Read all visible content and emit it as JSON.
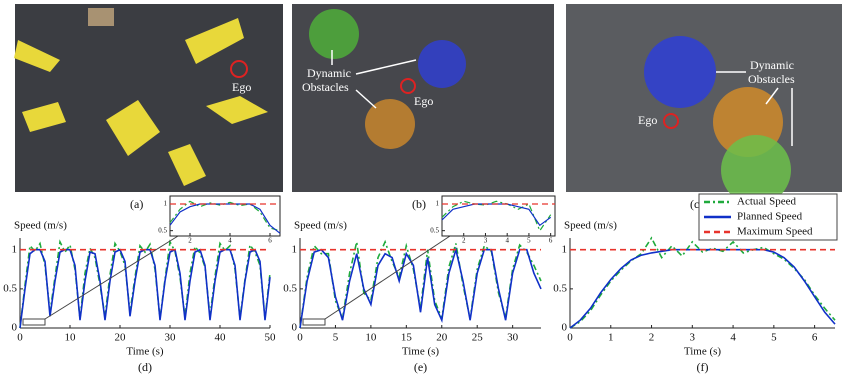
{
  "photos": [
    {
      "caption": "(a)",
      "labels": [
        "Ego"
      ]
    },
    {
      "caption": "(b)",
      "labels": [
        "Dynamic",
        "Obstacles",
        "Ego"
      ]
    },
    {
      "caption": "(c)",
      "labels": [
        "Dynamic",
        "Obstacles",
        "Ego"
      ]
    }
  ],
  "chart_data": [
    {
      "type": "line",
      "caption": "(d)",
      "ylabel": "Speed (m/s)",
      "xlabel": "Time (s)",
      "xlim": [
        0,
        50
      ],
      "xticks": [
        0,
        10,
        20,
        30,
        40,
        50
      ],
      "ylim": [
        0,
        1.15
      ],
      "yticks": [
        0,
        0.5,
        1
      ],
      "x": [
        0,
        1,
        2,
        3,
        4,
        5,
        6,
        7,
        8,
        9,
        10,
        11,
        12,
        13,
        14,
        15,
        16,
        17,
        18,
        19,
        20,
        21,
        22,
        23,
        24,
        25,
        26,
        27,
        28,
        29,
        30,
        31,
        32,
        33,
        34,
        35,
        36,
        37,
        38,
        39,
        40,
        41,
        42,
        43,
        44,
        45,
        46,
        47,
        48,
        49,
        50
      ],
      "series": [
        {
          "color": "#1faa3c",
          "style": "dashdot",
          "values": [
            0,
            0.55,
            1.05,
            0.98,
            1.08,
            0.8,
            0.2,
            0.65,
            1.1,
            0.97,
            1.06,
            0.75,
            0.12,
            0.7,
            1.02,
            0.9,
            0.55,
            0.15,
            0.68,
            1.08,
            0.98,
            0.8,
            0.2,
            0.65,
            1.05,
            0.97,
            1.07,
            0.75,
            0.12,
            0.62,
            1.1,
            0.98,
            0.65,
            0.14,
            0.7,
            1.04,
            0.96,
            0.78,
            0.15,
            0.66,
            1.08,
            0.99,
            1.05,
            0.75,
            0.13,
            0.62,
            1.06,
            0.97,
            0.8,
            0.12,
            0.7
          ]
        },
        {
          "color": "#1030c8",
          "style": "solid",
          "values": [
            0,
            0.5,
            0.95,
            1,
            1,
            0.85,
            0.15,
            0.6,
            0.97,
            1,
            1,
            0.8,
            0.1,
            0.6,
            0.97,
            0.95,
            0.6,
            0.1,
            0.6,
            0.97,
            1,
            0.85,
            0.15,
            0.6,
            0.97,
            1,
            1,
            0.8,
            0.1,
            0.6,
            0.97,
            1,
            0.7,
            0.1,
            0.6,
            0.97,
            1,
            0.8,
            0.1,
            0.6,
            0.97,
            1,
            1,
            0.8,
            0.1,
            0.6,
            0.97,
            1,
            0.85,
            0.1,
            0.65
          ]
        },
        {
          "color": "#e8342c",
          "style": "dashed",
          "x": [
            0,
            50
          ],
          "values": [
            1,
            1
          ]
        }
      ],
      "inset": {
        "type": "line",
        "xlim": [
          1,
          6.5
        ],
        "xticks": [
          2,
          4,
          6
        ],
        "ylim": [
          0.4,
          1.15
        ],
        "yticks": [
          0.5,
          1
        ],
        "x": [
          1,
          1.5,
          2,
          2.5,
          3,
          3.5,
          4,
          4.5,
          5,
          5.5,
          6,
          6.5
        ],
        "series": [
          {
            "color": "#1faa3c",
            "style": "dashdot",
            "values": [
              0.65,
              0.9,
              1.05,
              0.95,
              1.02,
              0.98,
              1.03,
              0.97,
              1.0,
              0.85,
              0.55,
              0.5
            ]
          },
          {
            "color": "#1030c8",
            "style": "solid",
            "values": [
              0.6,
              0.85,
              0.95,
              1,
              1,
              1,
              1,
              1,
              1,
              0.9,
              0.6,
              0.45
            ]
          },
          {
            "color": "#e8342c",
            "style": "dashed",
            "x": [
              1,
              6.5
            ],
            "values": [
              1,
              1
            ]
          }
        ]
      }
    },
    {
      "type": "line",
      "caption": "(e)",
      "ylabel": "Speed (m/s)",
      "xlabel": "Time (s)",
      "xlim": [
        0,
        34
      ],
      "xticks": [
        0,
        5,
        10,
        15,
        20,
        25,
        30
      ],
      "ylim": [
        0,
        1.15
      ],
      "yticks": [
        0,
        0.5,
        1
      ],
      "x": [
        0,
        1,
        2,
        3,
        4,
        5,
        6,
        7,
        8,
        9,
        10,
        11,
        12,
        13,
        14,
        15,
        16,
        17,
        18,
        19,
        20,
        21,
        22,
        23,
        24,
        25,
        26,
        27,
        28,
        29,
        30,
        31,
        32,
        33,
        34
      ],
      "series": [
        {
          "color": "#1faa3c",
          "style": "dashdot",
          "values": [
            0,
            0.65,
            1.05,
            0.95,
            0.95,
            0.35,
            0.12,
            0.7,
            1.1,
            0.45,
            0.35,
            0.9,
            1.1,
            0.85,
            0.65,
            1.05,
            0.75,
            0.25,
            1.0,
            0.35,
            0.12,
            0.78,
            1.08,
            0.55,
            0.12,
            0.75,
            1.05,
            0.98,
            0.45,
            0.13,
            0.75,
            1.06,
            0.97,
            0.8,
            0.6
          ]
        },
        {
          "color": "#1030c8",
          "style": "solid",
          "values": [
            0,
            0.6,
            0.97,
            1,
            0.9,
            0.4,
            0.1,
            0.6,
            0.95,
            0.5,
            0.3,
            0.8,
            0.95,
            0.9,
            0.6,
            0.95,
            0.8,
            0.2,
            0.9,
            0.3,
            0.1,
            0.7,
            1,
            0.6,
            0.1,
            0.7,
            1,
            1,
            0.5,
            0.1,
            0.7,
            1,
            1,
            0.7,
            0.5
          ]
        },
        {
          "color": "#e8342c",
          "style": "dashed",
          "x": [
            0,
            34
          ],
          "values": [
            1,
            1
          ]
        }
      ],
      "inset": {
        "type": "line",
        "xlim": [
          1,
          6.2
        ],
        "xticks": [
          2,
          3,
          4,
          5,
          6
        ],
        "ylim": [
          0.4,
          1.15
        ],
        "yticks": [
          0.5,
          1
        ],
        "x": [
          1,
          1.5,
          2,
          2.5,
          3,
          3.5,
          4,
          4.5,
          5,
          5.5,
          6
        ],
        "series": [
          {
            "color": "#1faa3c",
            "style": "dashdot",
            "values": [
              0.75,
              0.95,
              1.05,
              1.0,
              0.98,
              1.05,
              1.0,
              0.9,
              1.0,
              0.5,
              0.8
            ]
          },
          {
            "color": "#1030c8",
            "style": "solid",
            "values": [
              0.7,
              0.9,
              0.95,
              1,
              1,
              1,
              1,
              0.95,
              0.9,
              0.6,
              0.75
            ]
          },
          {
            "color": "#e8342c",
            "style": "dashed",
            "x": [
              1,
              6.2
            ],
            "values": [
              1,
              1
            ]
          }
        ]
      }
    },
    {
      "type": "line",
      "caption": "(f)",
      "ylabel": "Speed (m/s)",
      "xlabel": "Time (s)",
      "legend": "top-right",
      "xlim": [
        0,
        6.5
      ],
      "xticks": [
        0,
        1,
        2,
        3,
        4,
        5,
        6
      ],
      "ylim": [
        0,
        1.15
      ],
      "yticks": [
        0,
        0.5,
        1
      ],
      "x": [
        0,
        0.25,
        0.5,
        0.75,
        1,
        1.25,
        1.5,
        1.75,
        2,
        2.25,
        2.5,
        2.75,
        3,
        3.25,
        3.5,
        3.75,
        4,
        4.25,
        4.5,
        4.75,
        5,
        5.25,
        5.5,
        5.75,
        6,
        6.25,
        6.5
      ],
      "series": [
        {
          "name": "Actual Speed",
          "color": "#1faa3c",
          "style": "dashdot",
          "values": [
            0,
            0.08,
            0.22,
            0.42,
            0.6,
            0.74,
            0.86,
            0.95,
            1.15,
            0.9,
            1.05,
            0.92,
            1.1,
            0.97,
            1.02,
            0.98,
            1.1,
            0.96,
            1.0,
            1.03,
            0.95,
            0.88,
            0.76,
            0.62,
            0.42,
            0.25,
            0.1
          ]
        },
        {
          "name": "Planned Speed",
          "color": "#1030c8",
          "style": "solid",
          "values": [
            0,
            0.1,
            0.25,
            0.45,
            0.62,
            0.76,
            0.87,
            0.93,
            0.96,
            0.98,
            1,
            1,
            1,
            1,
            1,
            1,
            1,
            1,
            1,
            1,
            0.97,
            0.9,
            0.78,
            0.6,
            0.4,
            0.2,
            0.05
          ]
        },
        {
          "name": "Maximum Speed",
          "color": "#e8342c",
          "style": "dashed",
          "x": [
            0,
            6.5
          ],
          "values": [
            1,
            1
          ]
        }
      ]
    }
  ]
}
